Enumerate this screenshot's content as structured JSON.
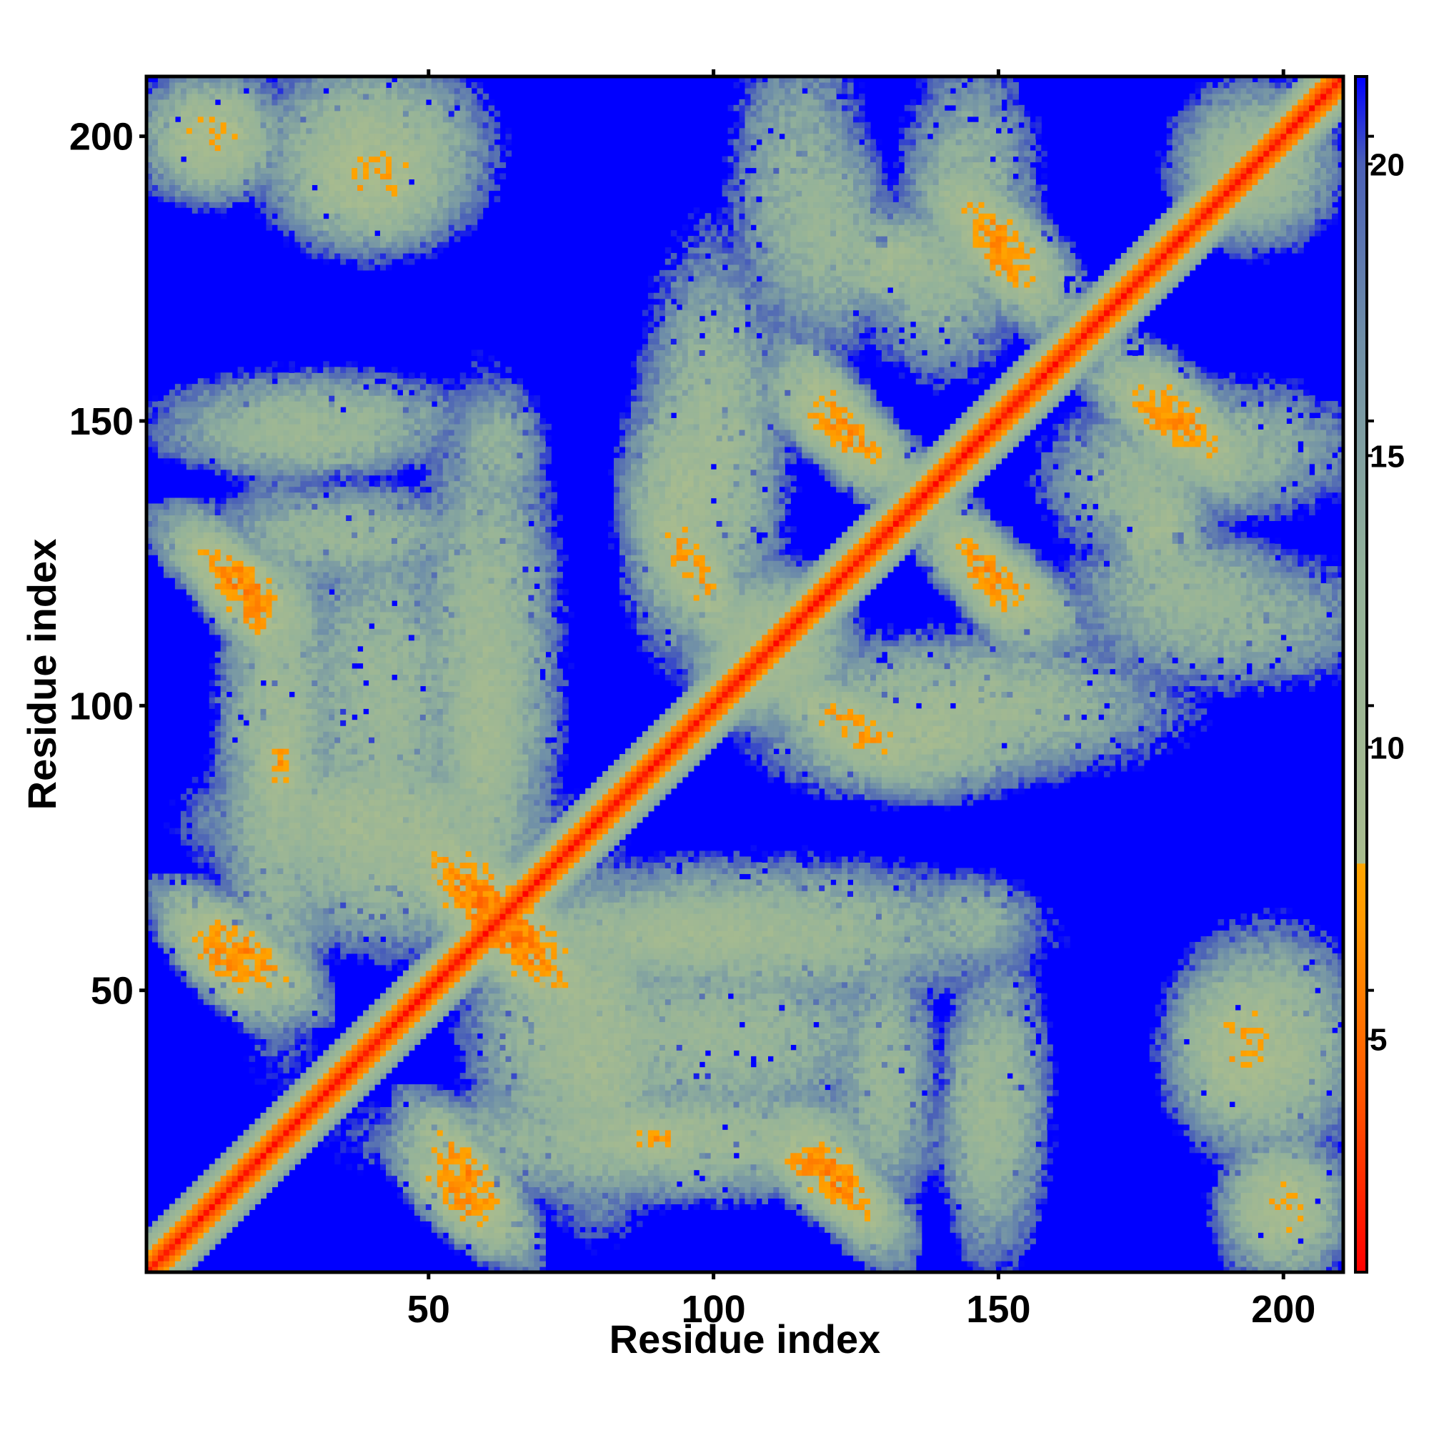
{
  "chart_data": {
    "type": "heatmap",
    "title": "",
    "xlabel": "Residue index",
    "ylabel": "Residue index",
    "n_residues": 210,
    "xlim": [
      1,
      210
    ],
    "ylim": [
      1,
      210
    ],
    "x_ticks": [
      50,
      100,
      150,
      200
    ],
    "y_ticks": [
      50,
      100,
      150,
      200
    ],
    "x_tick_labels": [
      "50",
      "100",
      "150",
      "200"
    ],
    "y_tick_labels": [
      "50",
      "100",
      "150",
      "200"
    ],
    "grid": false,
    "legend": "colorbar-right",
    "colorbar": {
      "range": [
        1,
        21.5
      ],
      "ticks": [
        5,
        10,
        15,
        20
      ],
      "tick_labels": [
        "5",
        "10",
        "15",
        "20"
      ],
      "stops": [
        {
          "value": 1,
          "color": "#ff0000"
        },
        {
          "value": 4,
          "color": "#ff5500"
        },
        {
          "value": 7,
          "color": "#ff9900"
        },
        {
          "value": 8,
          "color": "#ffa500"
        },
        {
          "value": 8.01,
          "color": "#a9bc8e"
        },
        {
          "value": 13,
          "color": "#93b29a"
        },
        {
          "value": 17,
          "color": "#6f8fa8"
        },
        {
          "value": 20,
          "color": "#4a60b8"
        },
        {
          "value": 21.5,
          "color": "#0000ff"
        }
      ]
    },
    "background_value": 21.5,
    "diagonal_band": [
      {
        "offset": 0,
        "value": 1.5
      },
      {
        "offset": 1,
        "value": 3.8
      },
      {
        "offset": 2,
        "value": 5.6
      },
      {
        "offset": 3,
        "value": 6.8
      },
      {
        "offset": 4,
        "value": 9.5
      },
      {
        "offset": 5,
        "value": 11.5
      },
      {
        "offset": 6,
        "value": 13
      },
      {
        "offset": 7,
        "value": 15
      }
    ],
    "contact_regions": [
      {
        "x": 55,
        "y": 14,
        "sx": 4,
        "sy": 4,
        "dir": "anti",
        "core": 6.5
      },
      {
        "x": 120,
        "y": 17,
        "sx": 5,
        "sy": 4,
        "dir": "anti",
        "core": 6.0
      },
      {
        "x": 90,
        "y": 24,
        "sx": 5,
        "sy": 3,
        "dir": "none",
        "core": 7.0
      },
      {
        "x": 147,
        "y": 28,
        "sx": 4,
        "sy": 14,
        "dir": "none",
        "core": 10.5
      },
      {
        "x": 197,
        "y": 40,
        "sx": 9,
        "sy": 11,
        "dir": "none",
        "core": 9.0
      },
      {
        "x": 200,
        "y": 12,
        "sx": 6,
        "sy": 6,
        "dir": "none",
        "core": 9.0
      },
      {
        "x": 107,
        "y": 60,
        "sx": 26,
        "sy": 7,
        "dir": "none",
        "core": 10.0
      },
      {
        "x": 60,
        "y": 65,
        "sx": 6,
        "sy": 6,
        "dir": "anti",
        "core": 5.5
      },
      {
        "x": 100,
        "y": 42,
        "sx": 20,
        "sy": 9,
        "dir": "none",
        "core": 11.0
      },
      {
        "x": 130,
        "y": 35,
        "sx": 5,
        "sy": 14,
        "dir": "none",
        "core": 11.0
      },
      {
        "x": 190,
        "y": 115,
        "sx": 16,
        "sy": 7,
        "dir": "none",
        "core": 12.0
      },
      {
        "x": 145,
        "y": 100,
        "sx": 20,
        "sy": 7,
        "dir": "none",
        "core": 10.0
      },
      {
        "x": 125,
        "y": 96,
        "sx": 6,
        "sy": 4,
        "dir": "anti",
        "core": 7.0
      },
      {
        "x": 150,
        "y": 122,
        "sx": 5,
        "sy": 4,
        "dir": "anti",
        "core": 6.5
      },
      {
        "x": 123,
        "y": 148,
        "sx": 5,
        "sy": 4,
        "dir": "anti",
        "core": 6.5
      },
      {
        "x": 150,
        "y": 182,
        "sx": 5,
        "sy": 5,
        "dir": "anti",
        "core": 6.5
      },
      {
        "x": 180,
        "y": 150,
        "sx": 5,
        "sy": 4,
        "dir": "anti",
        "core": 6.5
      },
      {
        "x": 190,
        "y": 145,
        "sx": 14,
        "sy": 7,
        "dir": "none",
        "core": 12.0
      },
      {
        "x": 178,
        "y": 132,
        "sx": 5,
        "sy": 8,
        "dir": "none",
        "core": 9.5
      },
      {
        "x": 17,
        "y": 122,
        "sx": 5,
        "sy": 4,
        "dir": "anti",
        "core": 6.0
      },
      {
        "x": 17,
        "y": 57,
        "sx": 5,
        "sy": 4,
        "dir": "anti",
        "core": 6.0
      },
      {
        "x": 12,
        "y": 200,
        "sx": 7,
        "sy": 6,
        "dir": "none",
        "core": 8.0
      },
      {
        "x": 40,
        "y": 193,
        "sx": 9,
        "sy": 7,
        "dir": "none",
        "core": 7.5
      },
      {
        "x": 30,
        "y": 150,
        "sx": 16,
        "sy": 5,
        "dir": "none",
        "core": 11.0
      },
      {
        "x": 62,
        "y": 145,
        "sx": 5,
        "sy": 7,
        "dir": "none",
        "core": 12.0
      },
      {
        "x": 24,
        "y": 92,
        "sx": 6,
        "sy": 28,
        "dir": "none",
        "core": 10.0
      },
      {
        "x": 60,
        "y": 95,
        "sx": 5,
        "sy": 22,
        "dir": "none",
        "core": 9.5
      },
      {
        "x": 95,
        "y": 135,
        "sx": 6,
        "sy": 14,
        "dir": "none",
        "core": 9.0
      },
      {
        "x": 120,
        "y": 183,
        "sx": 6,
        "sy": 12,
        "dir": "none",
        "core": 11.0
      },
      {
        "x": 140,
        "y": 175,
        "sx": 8,
        "sy": 10,
        "dir": "none",
        "core": 11.5
      },
      {
        "x": 195,
        "y": 195,
        "sx": 8,
        "sy": 8,
        "dir": "none",
        "core": 10.0
      },
      {
        "x": 40,
        "y": 80,
        "sx": 16,
        "sy": 7,
        "dir": "none",
        "core": 9.0
      },
      {
        "x": 75,
        "y": 45,
        "sx": 10,
        "sy": 16,
        "dir": "none",
        "core": 10.0
      },
      {
        "x": 110,
        "y": 110,
        "sx": 8,
        "sy": 8,
        "dir": "none",
        "core": 9.0
      }
    ]
  }
}
